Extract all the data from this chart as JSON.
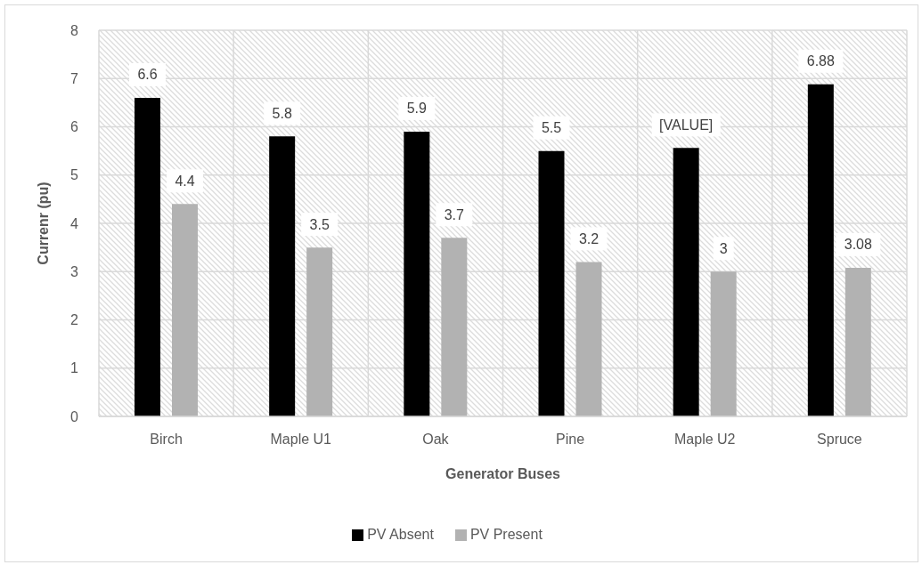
{
  "chart_data": {
    "type": "bar",
    "xlabel": "Generator Buses",
    "ylabel": "Currenr (pu)",
    "categories": [
      "Birch",
      "Maple U1",
      "Oak",
      "Pine",
      "Maple U2",
      "Spruce"
    ],
    "series": [
      {
        "name": "PV Absent",
        "color": "#000000",
        "values": [
          6.6,
          5.8,
          5.9,
          5.5,
          5.56,
          6.88
        ],
        "value_labels": [
          "6.6",
          "5.8",
          "5.9",
          "5.5",
          "[VALUE]",
          "6.88"
        ]
      },
      {
        "name": "PV Present",
        "color": "#b2b2b2",
        "values": [
          4.4,
          3.5,
          3.7,
          3.2,
          3,
          3.08
        ],
        "value_labels": [
          "4.4",
          "3.5",
          "3.7",
          "3.2",
          "3",
          "3.08"
        ]
      }
    ],
    "ylim": [
      0,
      8
    ],
    "yticks": [
      0,
      1,
      2,
      3,
      4,
      5,
      6,
      7,
      8
    ],
    "grid": true,
    "legend": "bottom"
  }
}
